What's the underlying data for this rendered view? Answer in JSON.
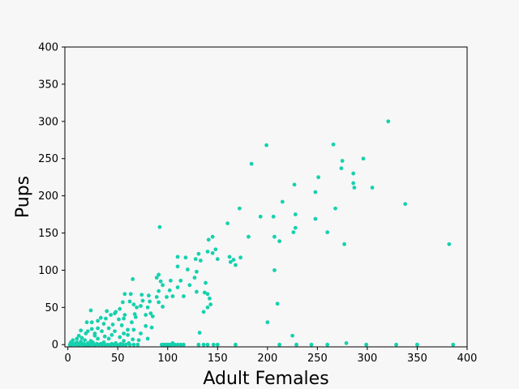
{
  "chart_data": {
    "type": "scatter",
    "title": "",
    "xlabel": "Adult Females",
    "ylabel": "Pups",
    "xlim": [
      -3,
      400
    ],
    "ylim": [
      -3,
      400
    ],
    "xticks": [
      0,
      50,
      100,
      150,
      200,
      250,
      300,
      350,
      400
    ],
    "yticks": [
      0,
      50,
      100,
      150,
      200,
      250,
      300,
      350,
      400
    ],
    "grid": false,
    "legend": "none",
    "colors": {
      "points": "#16d1ae",
      "background": "#f7f7f7",
      "plot_background": "#f7f7f7",
      "axes": "#000000"
    },
    "points": [
      [
        321,
        300
      ],
      [
        266,
        269
      ],
      [
        199,
        268
      ],
      [
        296,
        250
      ],
      [
        275,
        247
      ],
      [
        184,
        243
      ],
      [
        274,
        237
      ],
      [
        286,
        230
      ],
      [
        251,
        225
      ],
      [
        227,
        215
      ],
      [
        286,
        217
      ],
      [
        305,
        211
      ],
      [
        287,
        211
      ],
      [
        248,
        205
      ],
      [
        215,
        192
      ],
      [
        338,
        189
      ],
      [
        268,
        183
      ],
      [
        172,
        183
      ],
      [
        228,
        175
      ],
      [
        206,
        172
      ],
      [
        193,
        172
      ],
      [
        248,
        169
      ],
      [
        160,
        163
      ],
      [
        228,
        157
      ],
      [
        92,
        158
      ],
      [
        226,
        151
      ],
      [
        260,
        151
      ],
      [
        207,
        145
      ],
      [
        181,
        145
      ],
      [
        212,
        139
      ],
      [
        145,
        145
      ],
      [
        141,
        141
      ],
      [
        277,
        135
      ],
      [
        382,
        135
      ],
      [
        140,
        125
      ],
      [
        145,
        123
      ],
      [
        131,
        122
      ],
      [
        110,
        118
      ],
      [
        118,
        117
      ],
      [
        162,
        118
      ],
      [
        128,
        115
      ],
      [
        173,
        117
      ],
      [
        166,
        114
      ],
      [
        163,
        111
      ],
      [
        168,
        107
      ],
      [
        110,
        105
      ],
      [
        148,
        128
      ],
      [
        133,
        113
      ],
      [
        207,
        100
      ],
      [
        150,
        115
      ],
      [
        120,
        101
      ],
      [
        91,
        94
      ],
      [
        89,
        90
      ],
      [
        129,
        98
      ],
      [
        127,
        90
      ],
      [
        103,
        86
      ],
      [
        65,
        88
      ],
      [
        113,
        86
      ],
      [
        93,
        85
      ],
      [
        95,
        80
      ],
      [
        138,
        83
      ],
      [
        110,
        77
      ],
      [
        122,
        80
      ],
      [
        91,
        72
      ],
      [
        102,
        73
      ],
      [
        129,
        71
      ],
      [
        137,
        70
      ],
      [
        105,
        65
      ],
      [
        116,
        65
      ],
      [
        99,
        64
      ],
      [
        140,
        68
      ],
      [
        63,
        68
      ],
      [
        57,
        68
      ],
      [
        74,
        67
      ],
      [
        81,
        66
      ],
      [
        89,
        64
      ],
      [
        142,
        62
      ],
      [
        75,
        59
      ],
      [
        62,
        58
      ],
      [
        55,
        57
      ],
      [
        82,
        58
      ],
      [
        91,
        57
      ],
      [
        210,
        55
      ],
      [
        143,
        54
      ],
      [
        66,
        54
      ],
      [
        73,
        52
      ],
      [
        140,
        50
      ],
      [
        95,
        51
      ],
      [
        69,
        50
      ],
      [
        80,
        50
      ],
      [
        52,
        48
      ],
      [
        23,
        46
      ],
      [
        39,
        45
      ],
      [
        48,
        44
      ],
      [
        136,
        44
      ],
      [
        47,
        42
      ],
      [
        83,
        42
      ],
      [
        57,
        40
      ],
      [
        67,
        41
      ],
      [
        78,
        40
      ],
      [
        43,
        40
      ],
      [
        85,
        38
      ],
      [
        68,
        37
      ],
      [
        33,
        36
      ],
      [
        38,
        35
      ],
      [
        56,
        35
      ],
      [
        51,
        34
      ],
      [
        200,
        30
      ],
      [
        64,
        30
      ],
      [
        30,
        32
      ],
      [
        24,
        30
      ],
      [
        19,
        30
      ],
      [
        36,
        28
      ],
      [
        45,
        27
      ],
      [
        54,
        26
      ],
      [
        78,
        25
      ],
      [
        84,
        23
      ],
      [
        30,
        22
      ],
      [
        41,
        22
      ],
      [
        60,
        20
      ],
      [
        24,
        21
      ],
      [
        66,
        20
      ],
      [
        13,
        19
      ],
      [
        20,
        18
      ],
      [
        47,
        18
      ],
      [
        34,
        18
      ],
      [
        18,
        15
      ],
      [
        27,
        15
      ],
      [
        132,
        16
      ],
      [
        56,
        15
      ],
      [
        73,
        15
      ],
      [
        60,
        13
      ],
      [
        44,
        13
      ],
      [
        11,
        12
      ],
      [
        27,
        12
      ],
      [
        37,
        11
      ],
      [
        52,
        10
      ],
      [
        225,
        12
      ],
      [
        80,
        8
      ],
      [
        9,
        8
      ],
      [
        14,
        9
      ],
      [
        30,
        8
      ],
      [
        41,
        8
      ],
      [
        65,
        7
      ],
      [
        5,
        6
      ],
      [
        17,
        6
      ],
      [
        23,
        5
      ],
      [
        56,
        5
      ],
      [
        71,
        6
      ],
      [
        3,
        3
      ],
      [
        9,
        3
      ],
      [
        13,
        4
      ],
      [
        25,
        3
      ],
      [
        36,
        3
      ],
      [
        48,
        2
      ],
      [
        61,
        2
      ],
      [
        279,
        2
      ],
      [
        105,
        2
      ],
      [
        2,
        0
      ],
      [
        4,
        0
      ],
      [
        7,
        0
      ],
      [
        10,
        0
      ],
      [
        12,
        0
      ],
      [
        15,
        0
      ],
      [
        17,
        0
      ],
      [
        19,
        0
      ],
      [
        21,
        0
      ],
      [
        23,
        0
      ],
      [
        26,
        0
      ],
      [
        28,
        0
      ],
      [
        31,
        0
      ],
      [
        34,
        0
      ],
      [
        37,
        0
      ],
      [
        40,
        0
      ],
      [
        43,
        0
      ],
      [
        46,
        0
      ],
      [
        49,
        0
      ],
      [
        52,
        0
      ],
      [
        55,
        0
      ],
      [
        58,
        0
      ],
      [
        62,
        0
      ],
      [
        66,
        0
      ],
      [
        70,
        0
      ],
      [
        94,
        0
      ],
      [
        96,
        0
      ],
      [
        98,
        0
      ],
      [
        100,
        0
      ],
      [
        102,
        0
      ],
      [
        104,
        0
      ],
      [
        107,
        0
      ],
      [
        110,
        0
      ],
      [
        113,
        0
      ],
      [
        116,
        0
      ],
      [
        131,
        0
      ],
      [
        136,
        0
      ],
      [
        140,
        0
      ],
      [
        146,
        0
      ],
      [
        150,
        0
      ],
      [
        168,
        0
      ],
      [
        212,
        0
      ],
      [
        229,
        0
      ],
      [
        244,
        0
      ],
      [
        260,
        0
      ],
      [
        299,
        0
      ],
      [
        329,
        0
      ],
      [
        350,
        0
      ],
      [
        386,
        0
      ],
      [
        5,
        1
      ],
      [
        8,
        2
      ],
      [
        20,
        2
      ],
      [
        12,
        1
      ],
      [
        16,
        1
      ],
      [
        29,
        1
      ],
      [
        33,
        1
      ],
      [
        44,
        1
      ],
      [
        53,
        1
      ]
    ]
  }
}
